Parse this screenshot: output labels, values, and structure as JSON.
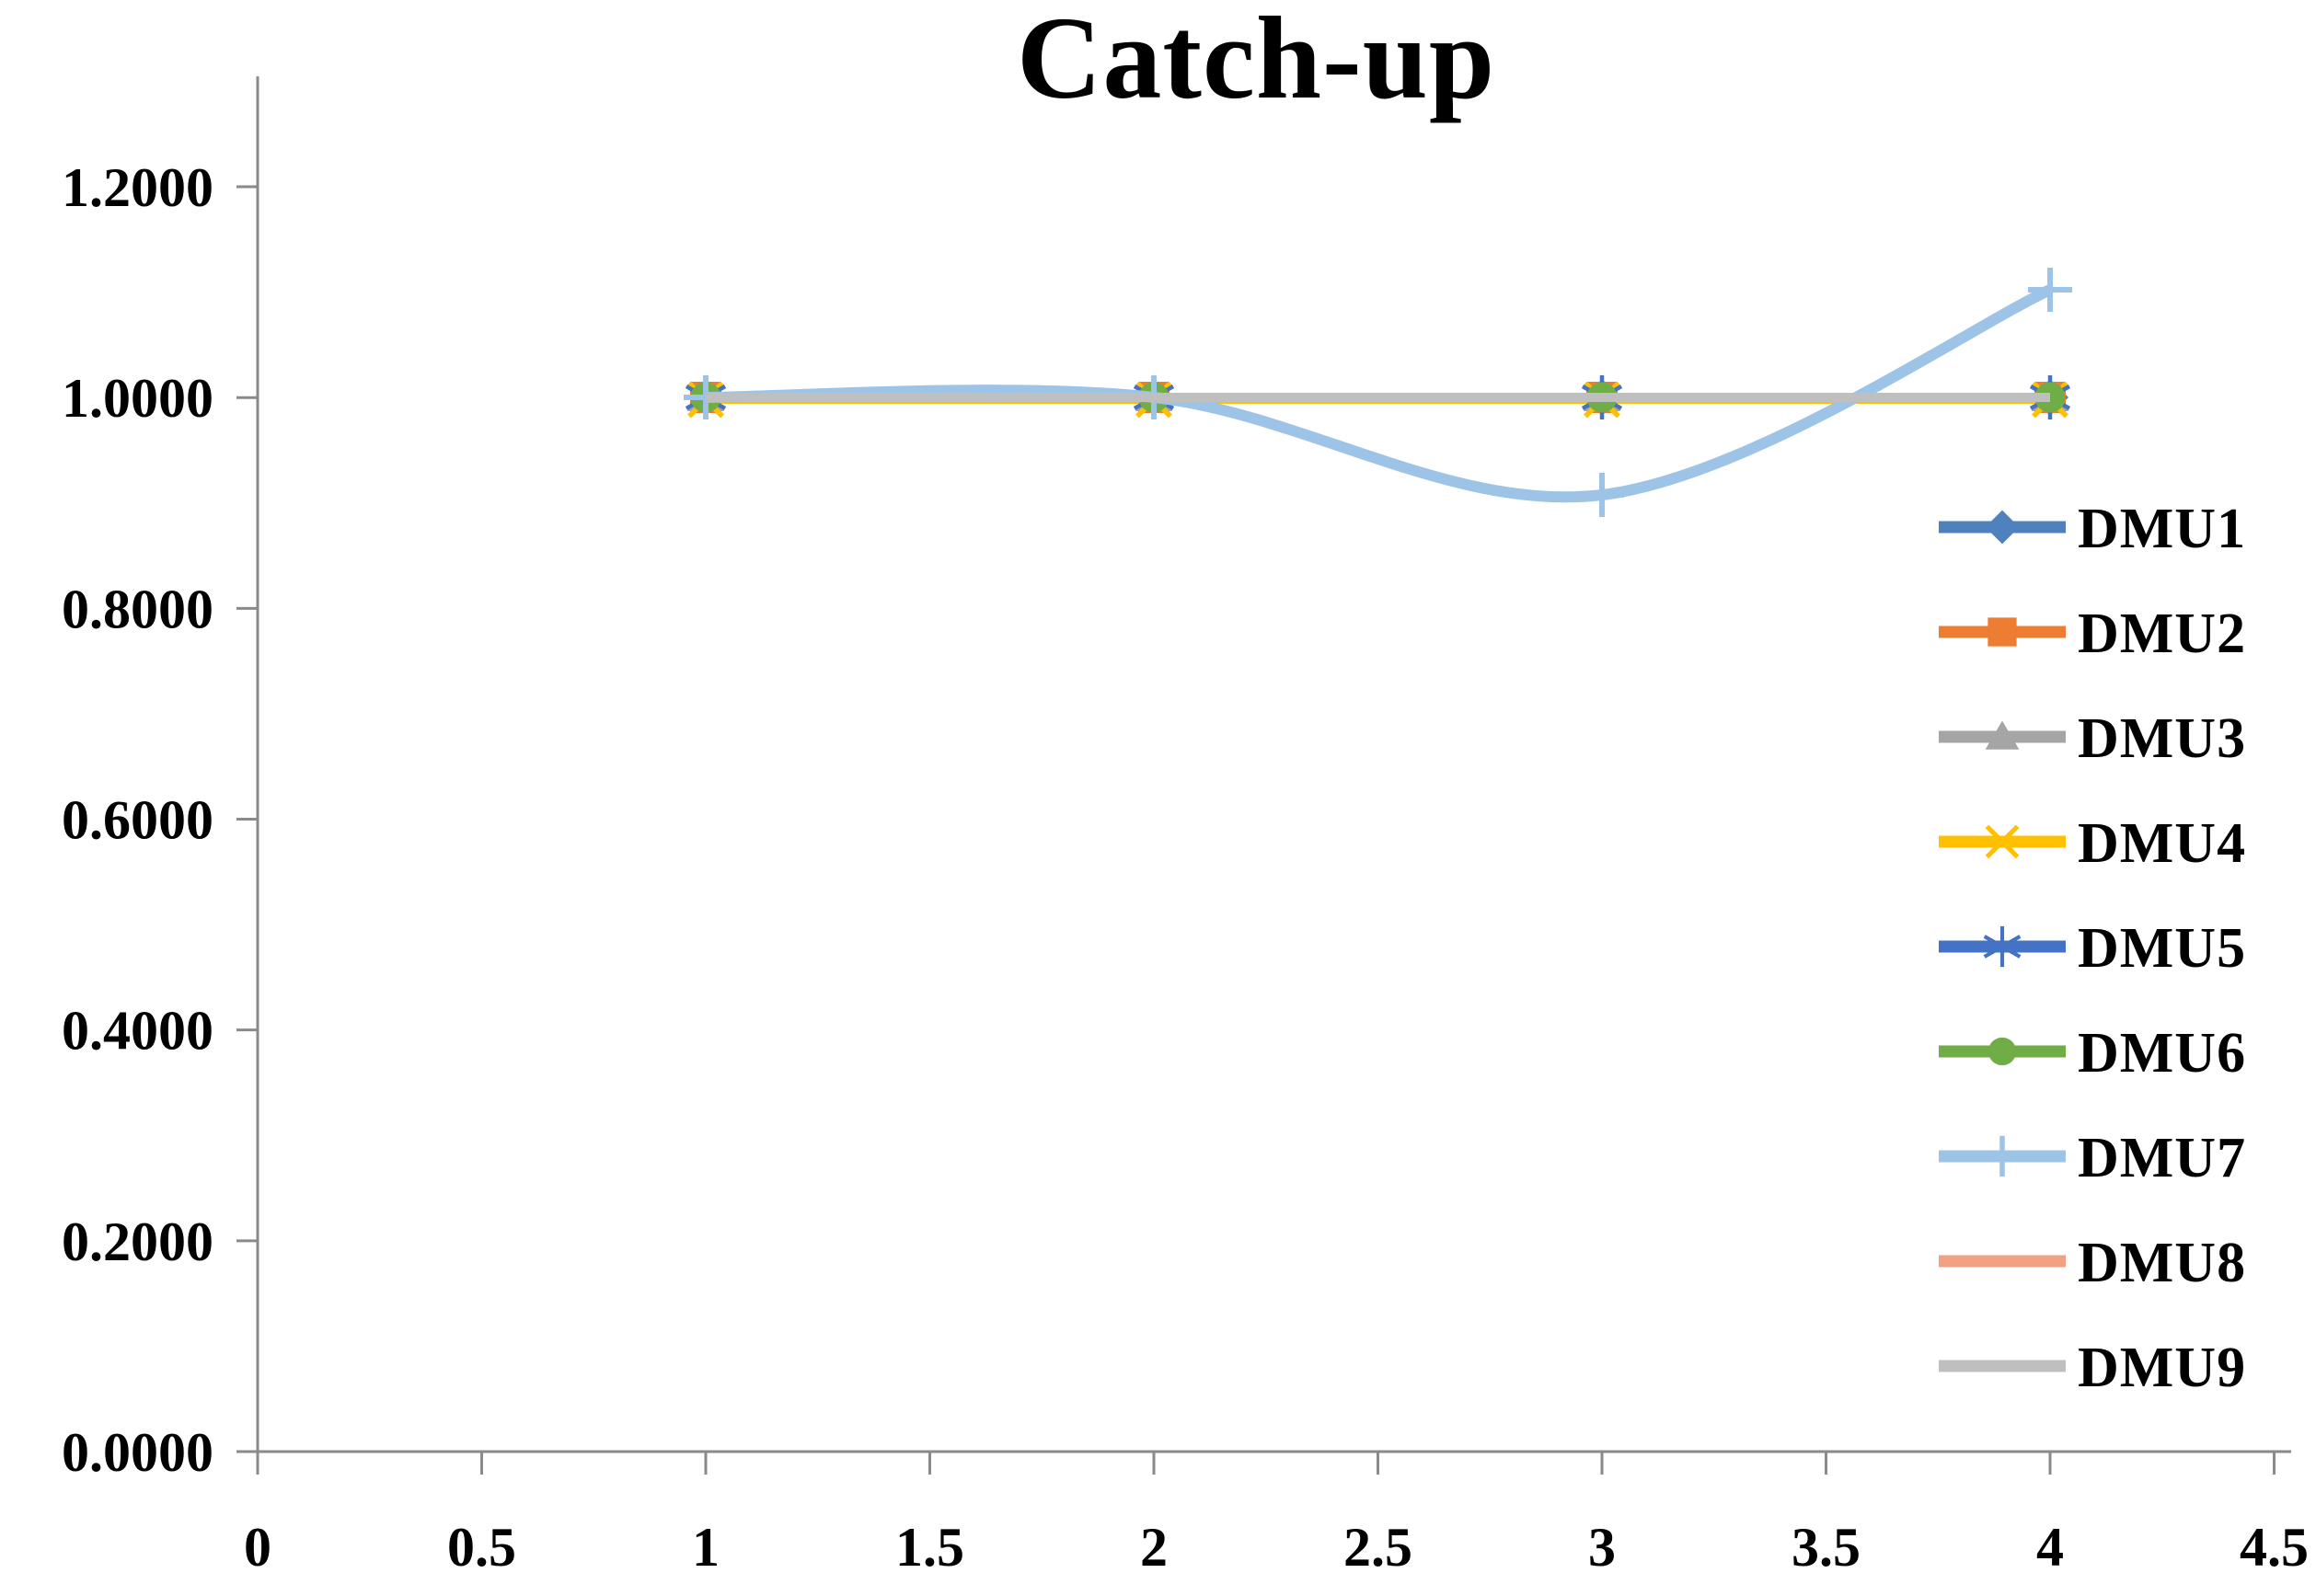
{
  "chart_data": {
    "type": "line",
    "title": "Catch-up",
    "x": [
      1,
      2,
      3,
      4
    ],
    "series": [
      {
        "name": "DMU1",
        "values": [
          1.0,
          1.0,
          1.0,
          1.0
        ],
        "color": "#4E81BD",
        "marker": "diamond"
      },
      {
        "name": "DMU2",
        "values": [
          1.0,
          1.0,
          1.0,
          1.0
        ],
        "color": "#ED7D31",
        "marker": "square"
      },
      {
        "name": "DMU3",
        "values": [
          1.0,
          1.0,
          1.0,
          1.0
        ],
        "color": "#A5A5A5",
        "marker": "triangle"
      },
      {
        "name": "DMU4",
        "values": [
          1.0,
          1.0,
          1.0,
          1.0
        ],
        "color": "#FFC000",
        "marker": "x"
      },
      {
        "name": "DMU5",
        "values": [
          1.0,
          1.0,
          1.0,
          1.0
        ],
        "color": "#4472C4",
        "marker": "asterisk"
      },
      {
        "name": "DMU6",
        "values": [
          1.0,
          1.0,
          1.0,
          1.0
        ],
        "color": "#70AD47",
        "marker": "circle"
      },
      {
        "name": "DMU7",
        "values": [
          1.0,
          1.0,
          0.9075,
          1.102
        ],
        "color": "#9DC3E6",
        "marker": "plus"
      },
      {
        "name": "DMU8",
        "values": [
          1.0,
          1.0,
          1.0,
          1.0
        ],
        "color": "#F2A183",
        "marker": "none"
      },
      {
        "name": "DMU9",
        "values": [
          1.0,
          1.0,
          1.0,
          1.0
        ],
        "color": "#BFBFBF",
        "marker": "none"
      }
    ],
    "x_axis": {
      "min": 0,
      "max": 4.5,
      "tick_step": 0.5,
      "tick_labels": [
        "0",
        "0.5",
        "1",
        "1.5",
        "2",
        "2.5",
        "3",
        "3.5",
        "4",
        "4.5"
      ]
    },
    "y_axis": {
      "min": 0,
      "max": 1.2,
      "tick_step": 0.2,
      "tick_labels": [
        "0.0000",
        "0.2000",
        "0.4000",
        "0.6000",
        "0.8000",
        "1.0000",
        "1.2000"
      ]
    },
    "legend_position": "right",
    "line_style": "smooth",
    "grid": false
  },
  "colors": {
    "axis": "#8A8A8A",
    "text": "#000000",
    "background": "#FFFFFF"
  }
}
